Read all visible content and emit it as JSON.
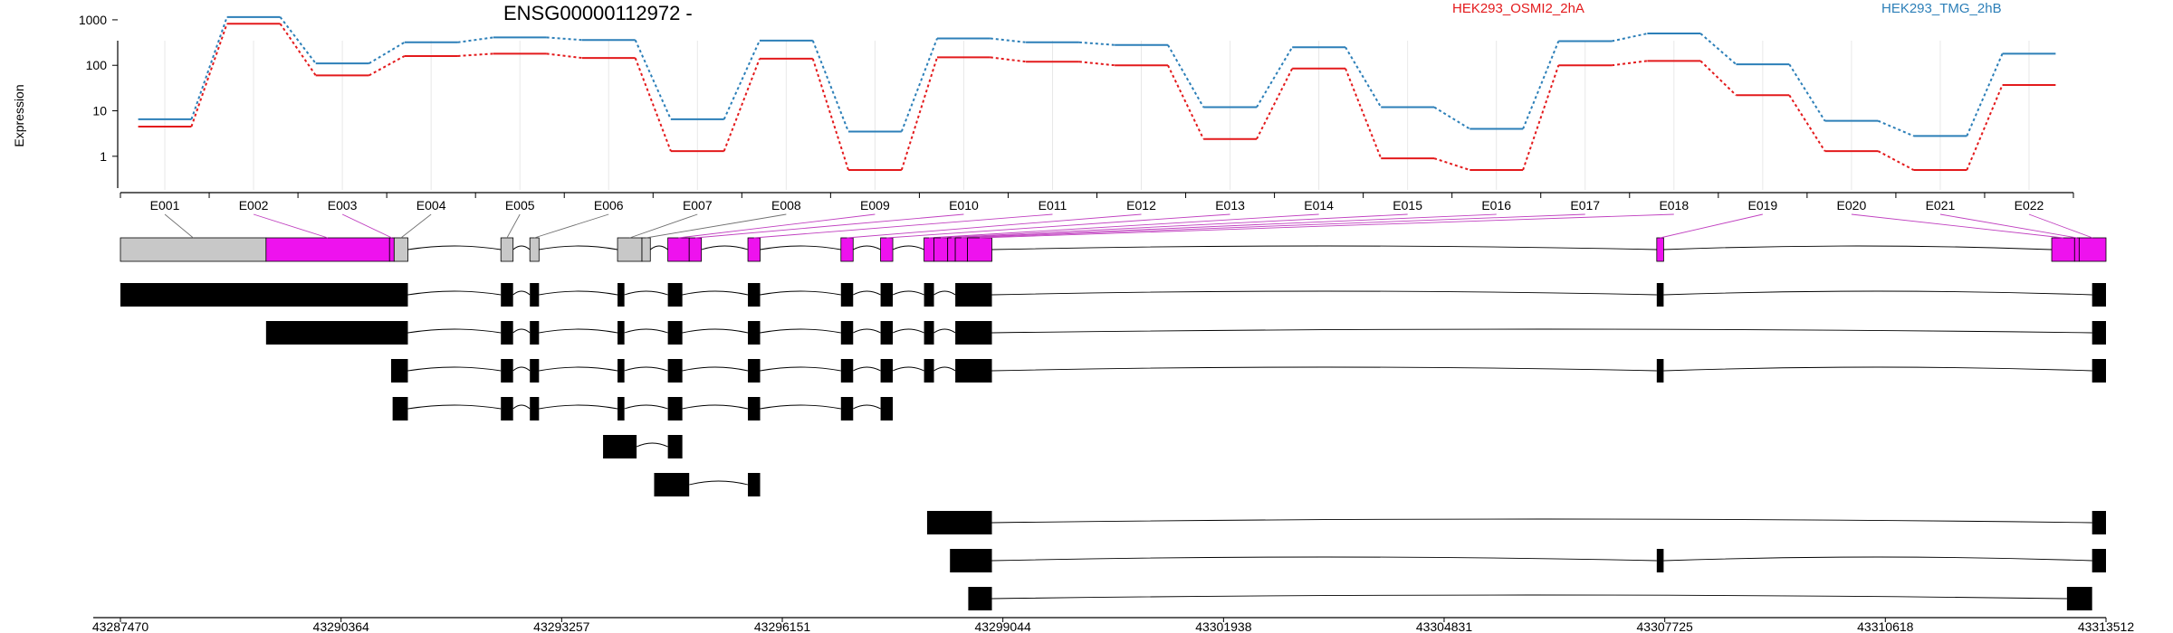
{
  "chart_data": {
    "type": "line",
    "title": "ENSG00000112972 -",
    "ylabel": "Expression",
    "y_scale": "log",
    "y_ticks": [
      "1",
      "10",
      "100",
      "1000"
    ],
    "exons": [
      "E001",
      "E002",
      "E003",
      "E004",
      "E005",
      "E006",
      "E007",
      "E008",
      "E009",
      "E010",
      "E011",
      "E012",
      "E013",
      "E014",
      "E015",
      "E016",
      "E017",
      "E018",
      "E019",
      "E020",
      "E021",
      "E022"
    ],
    "series": [
      {
        "name": "HEK293_OSMI2_2hA",
        "color": "#e31a1c",
        "values": [
          4.5,
          820,
          60,
          160,
          180,
          145,
          1.3,
          140,
          0.5,
          150,
          120,
          100,
          2.4,
          85,
          0.9,
          0.5,
          100,
          125,
          22,
          1.3,
          0.5,
          37
        ]
      },
      {
        "name": "HEK293_TMG_2hB",
        "color": "#2c7fb8",
        "values": [
          6.5,
          1150,
          110,
          320,
          410,
          360,
          6.5,
          350,
          3.5,
          390,
          320,
          280,
          12,
          250,
          12,
          4,
          340,
          500,
          105,
          6,
          2.8,
          180
        ]
      }
    ],
    "genomic_ticks": [
      "43287470",
      "43290364",
      "43293257",
      "43296151",
      "43299044",
      "43301938",
      "43304831",
      "43307725",
      "43310618",
      "43313512"
    ],
    "genomic_range": [
      43287470,
      43313512
    ],
    "exon_colors": {
      "highlight": "#ee12ee",
      "other": "#c8c8c8",
      "transcript": "#000000"
    },
    "gene_model": [
      {
        "exon": "E001",
        "start": 43287470,
        "end": 43289380,
        "highlight": false
      },
      {
        "exon": "E002",
        "start": 43289380,
        "end": 43291000,
        "highlight": true
      },
      {
        "exon": "E003",
        "start": 43291000,
        "end": 43291060,
        "highlight": true
      },
      {
        "exon": "E004",
        "start": 43291060,
        "end": 43291240,
        "highlight": false
      },
      {
        "exon": "E005",
        "start": 43292460,
        "end": 43292620,
        "highlight": false
      },
      {
        "exon": "E006",
        "start": 43292840,
        "end": 43292960,
        "highlight": false
      },
      {
        "exon": "E007",
        "start": 43293990,
        "end": 43294310,
        "highlight": false
      },
      {
        "exon": "E008",
        "start": 43294310,
        "end": 43294420,
        "highlight": false
      },
      {
        "exon": "E009",
        "start": 43294650,
        "end": 43294930,
        "highlight": true
      },
      {
        "exon": "E010",
        "start": 43294930,
        "end": 43295090,
        "highlight": true
      },
      {
        "exon": "E011",
        "start": 43295700,
        "end": 43295860,
        "highlight": true
      },
      {
        "exon": "E012",
        "start": 43296920,
        "end": 43297080,
        "highlight": true
      },
      {
        "exon": "E013",
        "start": 43297440,
        "end": 43297600,
        "highlight": true
      },
      {
        "exon": "E014",
        "start": 43298010,
        "end": 43298140,
        "highlight": true
      },
      {
        "exon": "E015",
        "start": 43298140,
        "end": 43298320,
        "highlight": true
      },
      {
        "exon": "E016",
        "start": 43298320,
        "end": 43298420,
        "highlight": true
      },
      {
        "exon": "E017",
        "start": 43298420,
        "end": 43298580,
        "highlight": true
      },
      {
        "exon": "E018",
        "start": 43298580,
        "end": 43298900,
        "highlight": true
      },
      {
        "exon": "E019",
        "start": 43307620,
        "end": 43307710,
        "highlight": true
      },
      {
        "exon": "E020",
        "start": 43312800,
        "end": 43313100,
        "highlight": true
      },
      {
        "exon": "E021",
        "start": 43313100,
        "end": 43313160,
        "highlight": true
      },
      {
        "exon": "E022",
        "start": 43313160,
        "end": 43313512,
        "highlight": true
      }
    ],
    "transcripts": [
      [
        [
          43287470,
          43291240
        ],
        [
          43292460,
          43292620
        ],
        [
          43292840,
          43292960
        ],
        [
          43293990,
          43294080
        ],
        [
          43294650,
          43294840
        ],
        [
          43295700,
          43295860
        ],
        [
          43296920,
          43297080
        ],
        [
          43297440,
          43297600
        ],
        [
          43298010,
          43298140
        ],
        [
          43298420,
          43298900
        ],
        [
          43307620,
          43307710
        ],
        [
          43313330,
          43313512
        ]
      ],
      [
        [
          43289380,
          43291240
        ],
        [
          43292460,
          43292620
        ],
        [
          43292840,
          43292960
        ],
        [
          43293990,
          43294080
        ],
        [
          43294650,
          43294840
        ],
        [
          43295700,
          43295860
        ],
        [
          43296920,
          43297080
        ],
        [
          43297440,
          43297600
        ],
        [
          43298010,
          43298140
        ],
        [
          43298420,
          43298900
        ],
        [
          43313330,
          43313512
        ]
      ],
      [
        [
          43291020,
          43291240
        ],
        [
          43292460,
          43292620
        ],
        [
          43292840,
          43292960
        ],
        [
          43293990,
          43294080
        ],
        [
          43294650,
          43294840
        ],
        [
          43295700,
          43295860
        ],
        [
          43296920,
          43297080
        ],
        [
          43297440,
          43297600
        ],
        [
          43298010,
          43298140
        ],
        [
          43298420,
          43298900
        ],
        [
          43307620,
          43307710
        ],
        [
          43313330,
          43313512
        ]
      ],
      [
        [
          43291040,
          43291240
        ],
        [
          43292460,
          43292620
        ],
        [
          43292840,
          43292960
        ],
        [
          43293990,
          43294080
        ],
        [
          43294650,
          43294840
        ],
        [
          43295700,
          43295860
        ],
        [
          43296920,
          43297080
        ],
        [
          43297440,
          43297600
        ]
      ],
      [
        [
          43293800,
          43294240
        ],
        [
          43294650,
          43294840
        ]
      ],
      [
        [
          43294470,
          43294930
        ],
        [
          43295700,
          43295860
        ]
      ],
      [
        [
          43298050,
          43298900
        ],
        [
          43313330,
          43313512
        ]
      ],
      [
        [
          43298350,
          43298900
        ],
        [
          43307620,
          43307710
        ],
        [
          43313330,
          43313512
        ]
      ],
      [
        [
          43298590,
          43298900
        ],
        [
          43313000,
          43313330
        ]
      ]
    ]
  }
}
